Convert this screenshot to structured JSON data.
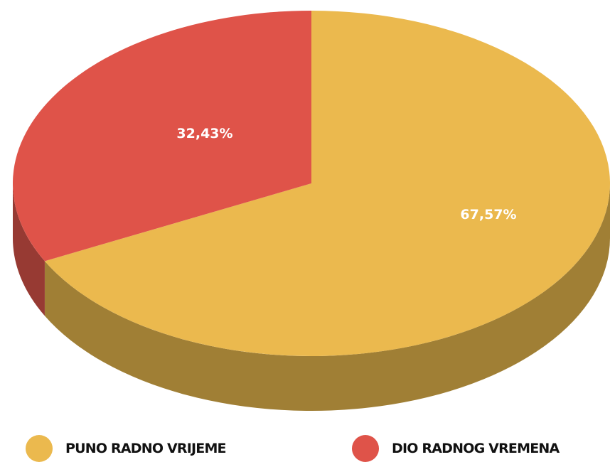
{
  "chart_data": {
    "type": "pie",
    "style": "3d",
    "slices": [
      {
        "label": "PUNO RADNO VRIJEME",
        "value": 67.57,
        "value_label": "67,57%",
        "color": "#ebb94e",
        "side_color": "#a07f35"
      },
      {
        "label": "DIO RADNOG VREMENA",
        "value": 32.43,
        "value_label": "32,43%",
        "color": "#df5349",
        "side_color": "#973a33"
      }
    ],
    "legend_position": "bottom"
  }
}
